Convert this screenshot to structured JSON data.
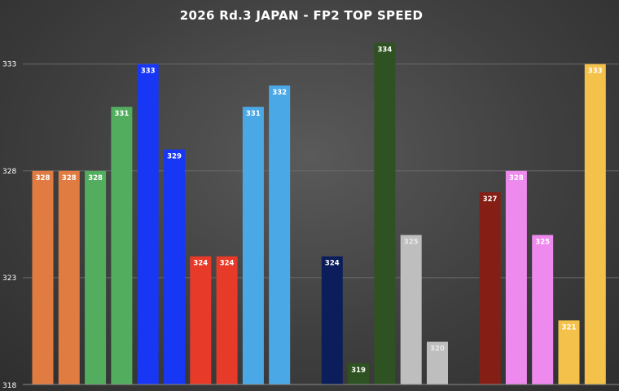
{
  "chart_data": {
    "type": "bar",
    "title": "2026 Rd.3 JAPAN - FP2 TOP SPEED",
    "xlabel": "",
    "ylabel": "",
    "ylim": [
      318,
      336
    ],
    "yticks": [
      318,
      323,
      328,
      333
    ],
    "grid": true,
    "values": [
      328,
      328,
      328,
      331,
      333,
      329,
      324,
      324,
      331,
      332,
      null,
      324,
      319,
      334,
      325,
      320,
      null,
      327,
      328,
      325,
      321,
      333
    ],
    "colors": [
      "#E07B41",
      "#E07B41",
      "#52AE5E",
      "#52AE5E",
      "#1737F5",
      "#1737F5",
      "#E83A28",
      "#E83A28",
      "#4BA8E6",
      "#4BA8E6",
      "#4A4A4A",
      "#0B1E5B",
      "#2F5222",
      "#2F5222",
      "#BEBEBE",
      "#BEBEBE",
      "#4A4A4A",
      "#851F15",
      "#EE8AEE",
      "#EE8AEE",
      "#F4C24A",
      "#F4C24A"
    ],
    "label_colors": [
      "#ffffff",
      "#ffffff",
      "#ffffff",
      "#ffffff",
      "#ffffff",
      "#ffffff",
      "#ffffff",
      "#ffffff",
      "#ffffff",
      "#ffffff",
      "#ffffff",
      "#ffffff",
      "#ffffff",
      "#ffffff",
      "#e8e8e8",
      "#e8e8e8",
      "#ffffff",
      "#ffffff",
      "#ffffff",
      "#ffffff",
      "#ffffff",
      "#ffffff"
    ]
  }
}
